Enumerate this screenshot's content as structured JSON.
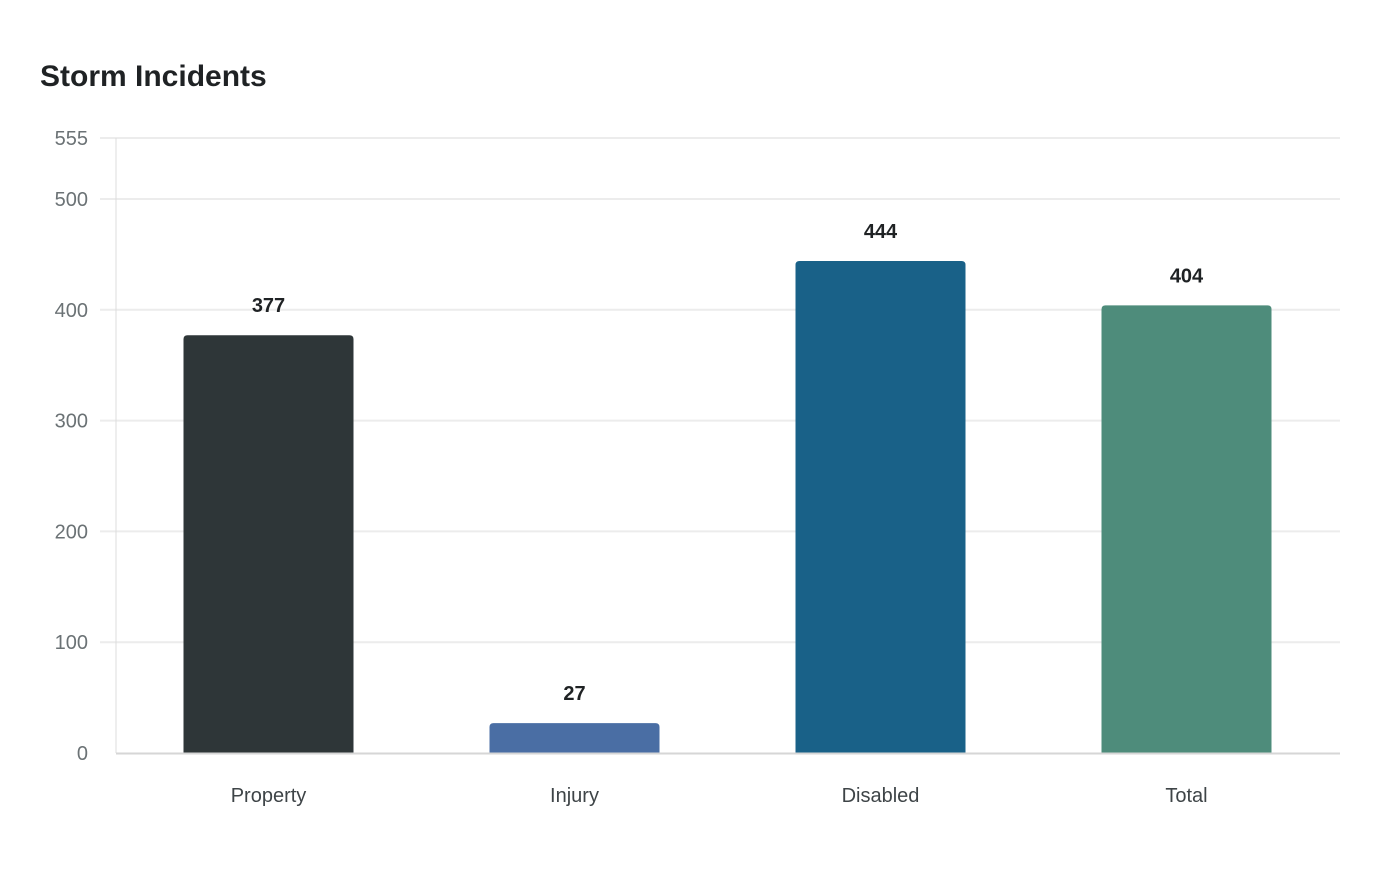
{
  "chart_data": {
    "type": "bar",
    "title": "Storm Incidents",
    "xlabel": "",
    "ylabel": "",
    "categories": [
      "Property",
      "Injury",
      "Disabled",
      "Total"
    ],
    "values": [
      377,
      27,
      444,
      404
    ],
    "colors": [
      "#2e3638",
      "#4a6ea4",
      "#196188",
      "#4e8c7b"
    ],
    "yticks": [
      0,
      100,
      200,
      300,
      400,
      500,
      555
    ],
    "ylim": [
      0,
      555
    ],
    "grid": true,
    "legend": null,
    "data_labels": true
  }
}
